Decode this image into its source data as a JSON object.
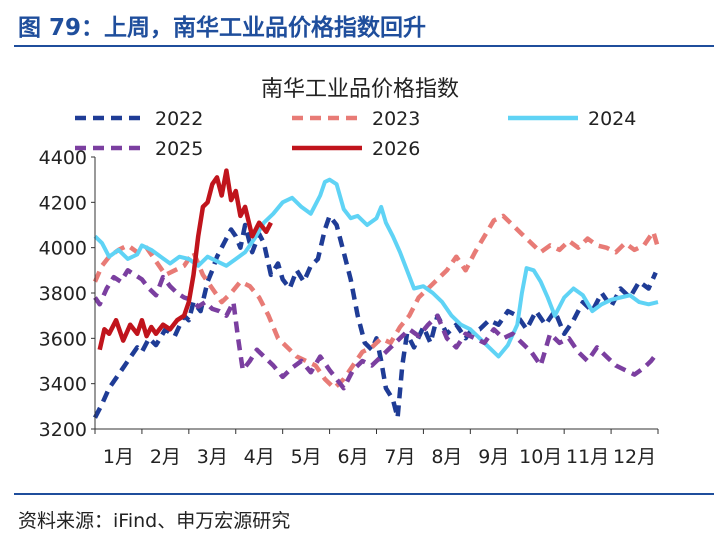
{
  "figure": {
    "title": "图 79：上周，南华工业品价格指数回升",
    "source": "资料来源：iFind、申万宏源研究"
  },
  "colors": {
    "accent": "#1f4e9c",
    "s2022": "#1f3c96",
    "s2023": "#e87b76",
    "s2024": "#5fd3f5",
    "s2025": "#7b3fa0",
    "s2026": "#c0141c"
  },
  "chart_data": {
    "type": "line",
    "title": "南华工业品价格指数",
    "xlabel": "",
    "ylabel": "",
    "ylim": [
      3200,
      4400
    ],
    "yticks": [
      3200,
      3400,
      3600,
      3800,
      4000,
      4200,
      4400
    ],
    "xticks": [
      "1月",
      "2月",
      "3月",
      "4月",
      "5月",
      "6月",
      "7月",
      "8月",
      "9月",
      "10月",
      "11月",
      "12月"
    ],
    "xlim": [
      1,
      13
    ],
    "grid": false,
    "legend_position": "top",
    "series": [
      {
        "name": "2022",
        "style": "dashed",
        "color": "#1f3c96",
        "x": [
          1.0,
          1.15,
          1.3,
          1.5,
          1.7,
          1.9,
          2.0,
          2.15,
          2.3,
          2.5,
          2.7,
          2.9,
          3.0,
          3.1,
          3.25,
          3.4,
          3.5,
          3.6,
          3.75,
          3.9,
          4.0,
          4.1,
          4.2,
          4.35,
          4.5,
          4.6,
          4.75,
          4.9,
          5.0,
          5.15,
          5.3,
          5.45,
          5.6,
          5.75,
          5.9,
          6.0,
          6.15,
          6.3,
          6.45,
          6.6,
          6.75,
          6.9,
          7.0,
          7.1,
          7.2,
          7.35,
          7.45,
          7.55,
          7.65,
          7.8,
          8.0,
          8.15,
          8.3,
          8.5,
          8.7,
          8.9,
          9.0,
          9.2,
          9.4,
          9.6,
          9.8,
          10.0,
          10.2,
          10.4,
          10.6,
          10.8,
          11.0,
          11.2,
          11.4,
          11.6,
          11.8,
          12.0,
          12.2,
          12.4,
          12.6,
          12.8,
          12.95
        ],
        "y": [
          3250,
          3310,
          3380,
          3440,
          3500,
          3560,
          3540,
          3600,
          3570,
          3640,
          3610,
          3700,
          3680,
          3760,
          3720,
          3850,
          3900,
          3960,
          4020,
          4080,
          4050,
          4000,
          4100,
          3980,
          4060,
          4020,
          3880,
          3930,
          3860,
          3820,
          3900,
          3850,
          3920,
          3950,
          4080,
          4140,
          4100,
          3980,
          3860,
          3700,
          3580,
          3550,
          3600,
          3500,
          3380,
          3330,
          3250,
          3480,
          3620,
          3560,
          3650,
          3580,
          3700,
          3620,
          3660,
          3600,
          3630,
          3640,
          3680,
          3660,
          3720,
          3700,
          3640,
          3720,
          3660,
          3720,
          3620,
          3680,
          3760,
          3720,
          3800,
          3740,
          3820,
          3780,
          3850,
          3820,
          3890
        ]
      },
      {
        "name": "2023",
        "style": "dashed",
        "color": "#e87b76",
        "x": [
          1.0,
          1.15,
          1.3,
          1.5,
          1.7,
          1.9,
          2.1,
          2.3,
          2.5,
          2.7,
          2.9,
          3.1,
          3.3,
          3.5,
          3.7,
          3.9,
          4.1,
          4.3,
          4.5,
          4.7,
          4.9,
          5.1,
          5.3,
          5.5,
          5.7,
          5.9,
          6.1,
          6.3,
          6.5,
          6.7,
          6.9,
          7.1,
          7.3,
          7.5,
          7.7,
          7.9,
          8.1,
          8.3,
          8.5,
          8.7,
          8.9,
          9.1,
          9.3,
          9.5,
          9.7,
          9.9,
          10.1,
          10.3,
          10.5,
          10.7,
          10.9,
          11.1,
          11.3,
          11.5,
          11.7,
          11.9,
          12.1,
          12.3,
          12.5,
          12.7,
          12.9,
          13.0
        ],
        "y": [
          3850,
          3920,
          3960,
          3990,
          4010,
          3980,
          4000,
          3940,
          3880,
          3900,
          3920,
          3980,
          3880,
          3820,
          3760,
          3800,
          3850,
          3830,
          3780,
          3700,
          3600,
          3560,
          3520,
          3500,
          3480,
          3420,
          3380,
          3420,
          3480,
          3540,
          3560,
          3600,
          3580,
          3650,
          3700,
          3780,
          3820,
          3860,
          3900,
          3960,
          3900,
          3980,
          4050,
          4120,
          4140,
          4100,
          4060,
          4020,
          3980,
          4010,
          3990,
          4030,
          4000,
          4040,
          4010,
          4000,
          3980,
          4020,
          3990,
          4010,
          4070,
          4000
        ]
      },
      {
        "name": "2024",
        "style": "solid",
        "color": "#5fd3f5",
        "x": [
          1.0,
          1.15,
          1.3,
          1.5,
          1.7,
          1.9,
          2.0,
          2.2,
          2.4,
          2.6,
          2.8,
          3.0,
          3.2,
          3.4,
          3.6,
          3.8,
          4.0,
          4.2,
          4.4,
          4.6,
          4.8,
          5.0,
          5.2,
          5.4,
          5.6,
          5.8,
          5.9,
          6.0,
          6.15,
          6.3,
          6.45,
          6.6,
          6.8,
          7.0,
          7.1,
          7.2,
          7.35,
          7.5,
          7.65,
          7.8,
          8.0,
          8.2,
          8.4,
          8.6,
          8.8,
          9.0,
          9.2,
          9.4,
          9.6,
          9.8,
          10.0,
          10.1,
          10.2,
          10.35,
          10.5,
          10.65,
          10.8,
          11.0,
          11.2,
          11.4,
          11.6,
          11.8,
          12.0,
          12.2,
          12.4,
          12.6,
          12.8,
          13.0
        ],
        "y": [
          4050,
          4020,
          3960,
          3990,
          3950,
          3970,
          4010,
          3990,
          3960,
          3930,
          3960,
          3950,
          3920,
          3960,
          3940,
          3920,
          3950,
          3980,
          4040,
          4110,
          4150,
          4200,
          4220,
          4180,
          4150,
          4230,
          4290,
          4300,
          4280,
          4170,
          4130,
          4140,
          4100,
          4130,
          4180,
          4110,
          4050,
          3980,
          3900,
          3820,
          3830,
          3800,
          3760,
          3700,
          3660,
          3640,
          3600,
          3560,
          3520,
          3570,
          3660,
          3800,
          3910,
          3900,
          3850,
          3780,
          3700,
          3780,
          3820,
          3790,
          3720,
          3750,
          3770,
          3780,
          3790,
          3760,
          3750,
          3760
        ]
      },
      {
        "name": "2025",
        "style": "dashed",
        "color": "#7b3fa0",
        "x": [
          1.0,
          1.1,
          1.25,
          1.4,
          1.55,
          1.7,
          1.85,
          2.0,
          2.15,
          2.3,
          2.45,
          2.6,
          2.75,
          2.9,
          3.05,
          3.2,
          3.35,
          3.5,
          3.65,
          3.8,
          3.95,
          4.05,
          4.15,
          4.3,
          4.45,
          4.6,
          4.8,
          5.0,
          5.2,
          5.4,
          5.6,
          5.8,
          6.0,
          6.15,
          6.3,
          6.5,
          6.7,
          6.9,
          7.1,
          7.3,
          7.5,
          7.7,
          7.9,
          8.1,
          8.3,
          8.5,
          8.7,
          8.9,
          9.1,
          9.3,
          9.5,
          9.7,
          9.9,
          10.1,
          10.3,
          10.5,
          10.7,
          10.9,
          11.1,
          11.3,
          11.5,
          11.7,
          11.9,
          12.1,
          12.3,
          12.5,
          12.7,
          12.85,
          13.0
        ],
        "y": [
          3780,
          3750,
          3820,
          3870,
          3850,
          3900,
          3880,
          3860,
          3820,
          3790,
          3870,
          3830,
          3800,
          3780,
          3770,
          3740,
          3760,
          3730,
          3720,
          3700,
          3760,
          3600,
          3460,
          3500,
          3550,
          3520,
          3480,
          3430,
          3470,
          3500,
          3450,
          3520,
          3460,
          3420,
          3380,
          3460,
          3500,
          3480,
          3520,
          3560,
          3600,
          3640,
          3610,
          3660,
          3700,
          3600,
          3560,
          3620,
          3600,
          3580,
          3640,
          3600,
          3620,
          3580,
          3540,
          3480,
          3620,
          3580,
          3600,
          3540,
          3500,
          3560,
          3520,
          3480,
          3460,
          3440,
          3470,
          3500,
          3540
        ]
      },
      {
        "name": "2026",
        "style": "solid",
        "color": "#c0141c",
        "x": [
          1.1,
          1.2,
          1.3,
          1.45,
          1.6,
          1.75,
          1.9,
          2.0,
          2.1,
          2.2,
          2.3,
          2.45,
          2.6,
          2.75,
          2.9,
          3.0,
          3.1,
          3.2,
          3.3,
          3.4,
          3.5,
          3.6,
          3.7,
          3.8,
          3.9,
          4.0,
          4.1,
          4.2,
          4.35,
          4.5,
          4.65,
          4.75
        ],
        "y": [
          3550,
          3640,
          3620,
          3680,
          3590,
          3660,
          3620,
          3680,
          3610,
          3650,
          3620,
          3660,
          3640,
          3680,
          3700,
          3760,
          3880,
          4050,
          4180,
          4200,
          4280,
          4310,
          4230,
          4340,
          4210,
          4250,
          4140,
          4180,
          4050,
          4110,
          4070,
          4110
        ]
      }
    ]
  }
}
